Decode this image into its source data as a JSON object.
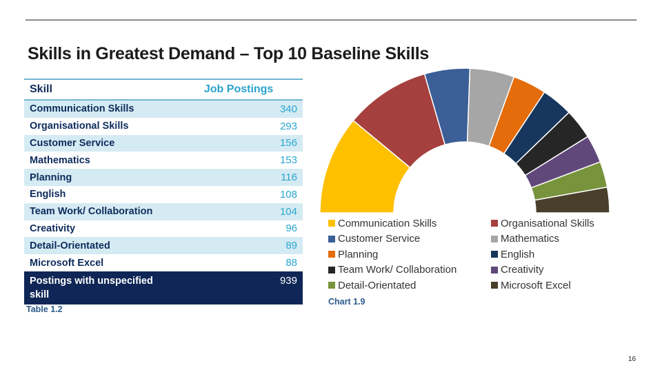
{
  "title": "Skills in Greatest Demand – Top 10 Baseline Skills",
  "table": {
    "headers": {
      "skill": "Skill",
      "postings": "Job Postings"
    },
    "rows": [
      {
        "skill": "Communication Skills",
        "postings": "340"
      },
      {
        "skill": "Organisational Skills",
        "postings": "293"
      },
      {
        "skill": "Customer Service",
        "postings": "156"
      },
      {
        "skill": "Mathematics",
        "postings": "153"
      },
      {
        "skill": "Planning",
        "postings": "116"
      },
      {
        "skill": "English",
        "postings": "108"
      },
      {
        "skill": "Team Work/ Collaboration",
        "postings": "104"
      },
      {
        "skill": "Creativity",
        "postings": "96"
      },
      {
        "skill": "Detail-Orientated",
        "postings": "89"
      },
      {
        "skill": "Microsoft Excel",
        "postings": "88"
      }
    ],
    "summary": {
      "label_line1": "Postings with unspecified",
      "label_line2": "skill",
      "value": "939"
    },
    "caption": "Table 1.2"
  },
  "chart_data": {
    "type": "pie",
    "subtype": "half-donut",
    "title": "",
    "caption": "Chart 1.9",
    "categories": [
      "Communication Skills",
      "Organisational Skills",
      "Customer Service",
      "Mathematics",
      "Planning",
      "English",
      "Team Work/ Collaboration",
      "Creativity",
      "Detail-Orientated",
      "Microsoft Excel"
    ],
    "values": [
      340,
      293,
      156,
      153,
      116,
      108,
      104,
      96,
      89,
      88
    ],
    "colors": [
      "#FFC000",
      "#A5403E",
      "#3B5F96",
      "#A6A6A6",
      "#E46C0A",
      "#17375E",
      "#262626",
      "#60497A",
      "#77933C",
      "#4A3F2A"
    ],
    "legend_position": "bottom"
  },
  "page_number": "16"
}
